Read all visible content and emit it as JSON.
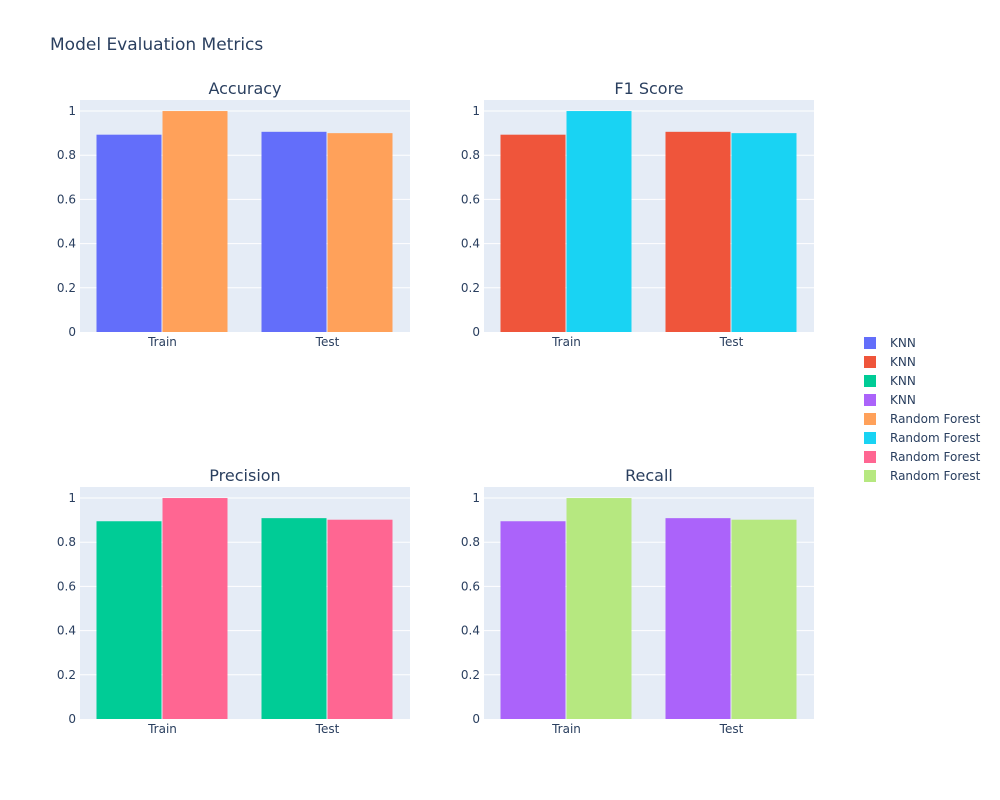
{
  "title": "Model Evaluation Metrics",
  "chart_data": [
    {
      "type": "bar",
      "title": "Accuracy",
      "categories": [
        "Train",
        "Test"
      ],
      "ylim": [
        0,
        1.05
      ],
      "yticks": [
        0,
        0.2,
        0.4,
        0.6,
        0.8,
        1
      ],
      "series": [
        {
          "name": "KNN",
          "values": [
            0.893,
            0.906
          ],
          "color": "#636efa"
        },
        {
          "name": "Random Forest",
          "values": [
            1.0,
            0.9
          ],
          "color": "#ffa15a"
        }
      ]
    },
    {
      "type": "bar",
      "title": "F1 Score",
      "categories": [
        "Train",
        "Test"
      ],
      "ylim": [
        0,
        1.05
      ],
      "yticks": [
        0,
        0.2,
        0.4,
        0.6,
        0.8,
        1
      ],
      "series": [
        {
          "name": "KNN",
          "values": [
            0.893,
            0.906
          ],
          "color": "#ef553b"
        },
        {
          "name": "Random Forest",
          "values": [
            1.0,
            0.9
          ],
          "color": "#19d3f3"
        }
      ]
    },
    {
      "type": "bar",
      "title": "Precision",
      "categories": [
        "Train",
        "Test"
      ],
      "ylim": [
        0,
        1.05
      ],
      "yticks": [
        0,
        0.2,
        0.4,
        0.6,
        0.8,
        1
      ],
      "series": [
        {
          "name": "KNN",
          "values": [
            0.895,
            0.909
          ],
          "color": "#00cc96"
        },
        {
          "name": "Random Forest",
          "values": [
            1.0,
            0.902
          ],
          "color": "#ff6692"
        }
      ]
    },
    {
      "type": "bar",
      "title": "Recall",
      "categories": [
        "Train",
        "Test"
      ],
      "ylim": [
        0,
        1.05
      ],
      "yticks": [
        0,
        0.2,
        0.4,
        0.6,
        0.8,
        1
      ],
      "series": [
        {
          "name": "KNN",
          "values": [
            0.895,
            0.909
          ],
          "color": "#ab63fa"
        },
        {
          "name": "Random Forest",
          "values": [
            1.0,
            0.902
          ],
          "color": "#b6e880"
        }
      ]
    }
  ],
  "legend": {
    "position": "right",
    "items": [
      {
        "label": "KNN",
        "color": "#636efa"
      },
      {
        "label": "KNN",
        "color": "#ef553b"
      },
      {
        "label": "KNN",
        "color": "#00cc96"
      },
      {
        "label": "KNN",
        "color": "#ab63fa"
      },
      {
        "label": "Random Forest",
        "color": "#ffa15a"
      },
      {
        "label": "Random Forest",
        "color": "#19d3f3"
      },
      {
        "label": "Random Forest",
        "color": "#ff6692"
      },
      {
        "label": "Random Forest",
        "color": "#b6e880"
      }
    ]
  },
  "style": {
    "plot_bg": "#e5ecf6",
    "grid_color": "#ffffff",
    "text_color": "#2a3f5f"
  }
}
